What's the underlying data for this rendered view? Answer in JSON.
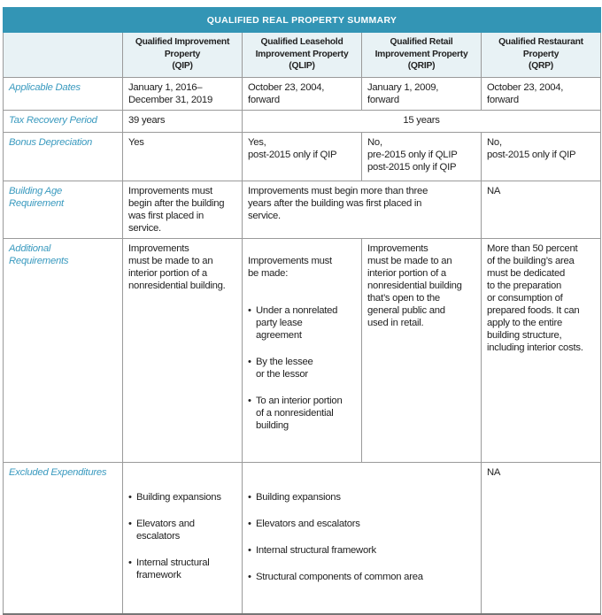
{
  "title": "QUALIFIED REAL PROPERTY SUMMARY",
  "colors": {
    "title_bg": "#3395b5",
    "header_bg": "#e8f2f5",
    "label": "#3a9abf"
  },
  "columns": [
    "Qualified Improvement\nProperty\n(QIP)",
    "Qualified Leasehold\nImprovement Property\n(QLIP)",
    "Qualified Retail\nImprovement Property\n(QRIP)",
    "Qualified Restaurant\nProperty\n(QRP)"
  ],
  "rows": {
    "dates": {
      "label": "Applicable Dates",
      "qip": "January 1, 2016–\nDecember 31, 2019",
      "qlip": "October 23, 2004,\nforward",
      "qrip": "January 1, 2009,\nforward",
      "qrp": "October 23, 2004,\nforward"
    },
    "recovery": {
      "label": "Tax Recovery Period",
      "qip": "39 years",
      "others": "15 years"
    },
    "bonus": {
      "label": "Bonus Depreciation",
      "qip": "Yes",
      "qlip": "Yes,\npost-2015 only if QIP",
      "qrip": "No,\npre-2015 only if QLIP\npost-2015 only if QIP",
      "qrp": "No,\npost-2015 only if QIP"
    },
    "age": {
      "label": "Building Age\nRequirement",
      "qip": "Improvements must\nbegin after the building\nwas first placed in\nservice.",
      "qlip_qrip": "Improvements must begin more than three\nyears after the building was first placed in\nservice.",
      "qrp": "NA"
    },
    "additional": {
      "label": "Additional\nRequirements",
      "qip": "Improvements\nmust be made to an\ninterior portion of a\nnonresidential building.",
      "qlip_intro": "Improvements must\nbe made:",
      "qlip_items": [
        "Under a nonrelated\nparty lease\nagreement",
        "By the lessee\nor the lessor",
        "To an interior portion\nof a nonresidential\nbuilding"
      ],
      "qrip": "Improvements\nmust be made to an\ninterior portion of a\nnonresidential building\nthat’s open to the\ngeneral public and\nused in retail.",
      "qrp": "More than 50 percent\nof the building’s area\nmust be dedicated\nto the preparation\nor consumption of\nprepared foods. It can\napply to the entire\nbuilding structure,\nincluding interior costs."
    },
    "excluded": {
      "label": "Excluded Expenditures",
      "qip_items": [
        "Building expansions",
        "Elevators and\nescalators",
        "Internal structural\nframework"
      ],
      "qlip_qrip_items": [
        "Building expansions",
        "Elevators and escalators",
        "Internal structural framework",
        "Structural components of common area"
      ],
      "qrp": "NA"
    }
  }
}
